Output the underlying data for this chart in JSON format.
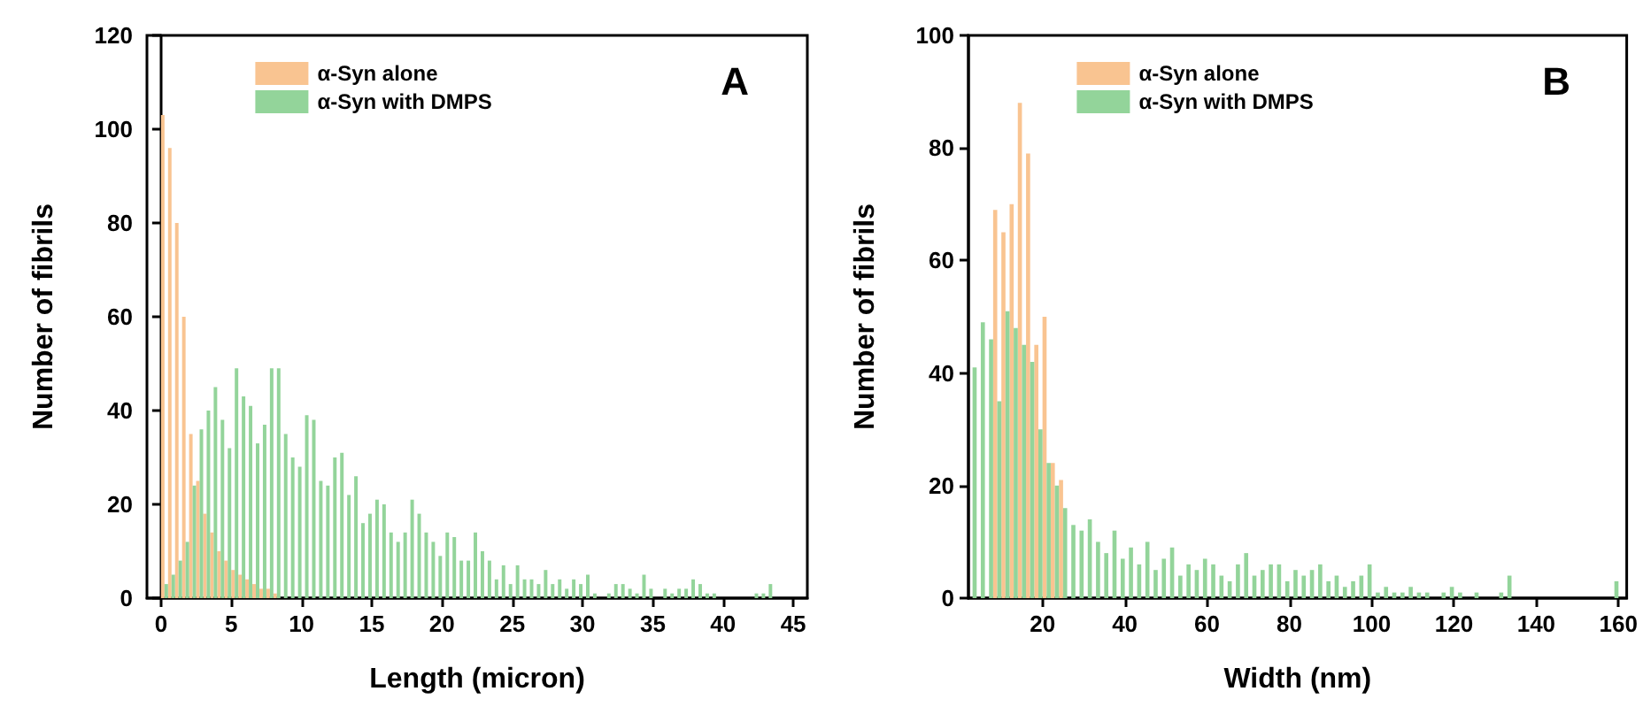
{
  "chart_data": [
    {
      "type": "histogram",
      "title": "A",
      "xlabel": "Length (micron)",
      "ylabel": "Number of fibrils",
      "xlim": [
        -1,
        46
      ],
      "xticks": [
        0,
        5,
        10,
        15,
        20,
        25,
        30,
        35,
        40,
        45
      ],
      "ylim": [
        0,
        120
      ],
      "yticks": [
        0,
        20,
        40,
        60,
        80,
        100,
        120
      ],
      "legend": "top",
      "bins": [
        0,
        0.5,
        1,
        1.5,
        2,
        2.5,
        3,
        3.5,
        4,
        4.5,
        5,
        5.5,
        6,
        6.5,
        7,
        7.5,
        8,
        8.5,
        9,
        9.5,
        10,
        10.5,
        11,
        11.5,
        12,
        12.5,
        13,
        13.5,
        14,
        14.5,
        15,
        15.5,
        16,
        16.5,
        17,
        17.5,
        18,
        18.5,
        19,
        19.5,
        20,
        20.5,
        21,
        21.5,
        22,
        22.5,
        23,
        23.5,
        24,
        24.5,
        25,
        25.5,
        26,
        26.5,
        27,
        27.5,
        28,
        28.5,
        29,
        29.5,
        30,
        30.5,
        31,
        31.5,
        32,
        32.5,
        33,
        33.5,
        34,
        34.5,
        35,
        35.5,
        36,
        36.5,
        37,
        37.5,
        38,
        38.5,
        39,
        39.5,
        40,
        40.5,
        41,
        41.5,
        42,
        42.5,
        43,
        43.5
      ],
      "series": [
        {
          "name": "α-Syn alone",
          "color": "#f9c491",
          "values": [
            103,
            96,
            80,
            60,
            35,
            25,
            18,
            14,
            10,
            8,
            6,
            5,
            4,
            3,
            2,
            2,
            1,
            null,
            null,
            null,
            null,
            null,
            null,
            null,
            null,
            null,
            null,
            null,
            null,
            null,
            null,
            null,
            null,
            null,
            null,
            null,
            null,
            null,
            null,
            null,
            null,
            null,
            null,
            null,
            null,
            null,
            null,
            null,
            null,
            null,
            null,
            null,
            null,
            null,
            null,
            null,
            null,
            null,
            null,
            null,
            null,
            null,
            null,
            null,
            null,
            null,
            null,
            null,
            null,
            null,
            null,
            null,
            null,
            null,
            null,
            null,
            null,
            null,
            null,
            null,
            null,
            null,
            null,
            null,
            null,
            null,
            null
          ]
        },
        {
          "name": "α-Syn with DMPS",
          "color": "#93d49a",
          "values": [
            3,
            5,
            8,
            12,
            24,
            36,
            40,
            45,
            38,
            32,
            49,
            43,
            41,
            33,
            37,
            49,
            49,
            35,
            30,
            28,
            39,
            38,
            25,
            24,
            30,
            31,
            22,
            26,
            16,
            18,
            21,
            20,
            14,
            12,
            14,
            21,
            18,
            14,
            12,
            9,
            14,
            13,
            8,
            8,
            14,
            10,
            8,
            4,
            7,
            3,
            7,
            4,
            4,
            3,
            6,
            3,
            4,
            2,
            4,
            3,
            5,
            1,
            0,
            1,
            3,
            3,
            2,
            1,
            5,
            2,
            0,
            2,
            1,
            2,
            2,
            4,
            3,
            1,
            1,
            0,
            0,
            0,
            0,
            0,
            1,
            1,
            3
          ]
        }
      ]
    },
    {
      "type": "histogram",
      "title": "B",
      "xlabel": "Width (nm)",
      "ylabel": "Number of fibrils",
      "xlim": [
        2,
        162
      ],
      "xticks": [
        20,
        40,
        60,
        80,
        100,
        120,
        140,
        160
      ],
      "ylim": [
        0,
        100
      ],
      "yticks": [
        0,
        20,
        40,
        60,
        80,
        100
      ],
      "legend": "top",
      "bins": [
        2,
        4,
        6,
        8,
        10,
        12,
        14,
        16,
        18,
        20,
        22,
        24,
        26,
        28,
        30,
        32,
        34,
        36,
        38,
        40,
        42,
        44,
        46,
        48,
        50,
        52,
        54,
        56,
        58,
        60,
        62,
        64,
        66,
        68,
        70,
        72,
        74,
        76,
        78,
        80,
        82,
        84,
        86,
        88,
        90,
        92,
        94,
        96,
        98,
        100,
        102,
        104,
        106,
        108,
        110,
        112,
        114,
        116,
        118,
        120,
        122,
        124,
        126,
        128,
        130,
        132,
        134,
        136,
        138,
        140,
        142,
        144,
        146,
        148,
        150,
        152,
        154,
        156,
        158,
        160
      ],
      "series": [
        {
          "name": "α-Syn alone",
          "color": "#f9c491",
          "values": [
            null,
            null,
            null,
            69,
            65,
            70,
            88,
            79,
            45,
            50,
            24,
            21,
            null,
            null,
            null,
            null,
            null,
            null,
            null,
            null,
            null,
            null,
            null,
            null,
            null,
            null,
            null,
            null,
            null,
            null,
            null,
            null,
            null,
            null,
            null,
            null,
            null,
            null,
            null,
            null,
            null,
            null,
            null,
            null,
            null,
            null,
            null,
            null,
            null,
            null,
            null,
            null,
            null,
            null,
            null,
            null,
            null,
            null,
            null,
            null,
            null,
            null,
            null,
            null,
            null,
            null,
            null,
            null,
            null,
            null,
            null,
            null,
            null,
            null,
            null,
            null,
            null,
            null,
            null
          ]
        },
        {
          "name": "α-Syn with DMPS",
          "color": "#93d49a",
          "values": [
            41,
            49,
            46,
            35,
            51,
            48,
            45,
            42,
            30,
            24,
            20,
            16,
            13,
            12,
            14,
            10,
            8,
            12,
            7,
            9,
            6,
            10,
            5,
            7,
            9,
            4,
            6,
            5,
            7,
            6,
            4,
            3,
            6,
            8,
            4,
            5,
            6,
            6,
            3,
            5,
            4,
            5,
            6,
            3,
            4,
            2,
            3,
            4,
            6,
            1,
            2,
            1,
            1,
            2,
            1,
            1,
            0,
            1,
            2,
            1,
            0,
            1,
            0,
            0,
            1,
            4,
            0,
            0,
            0,
            0,
            0,
            0,
            0,
            0,
            0,
            0,
            0,
            0,
            3
          ]
        }
      ]
    }
  ]
}
